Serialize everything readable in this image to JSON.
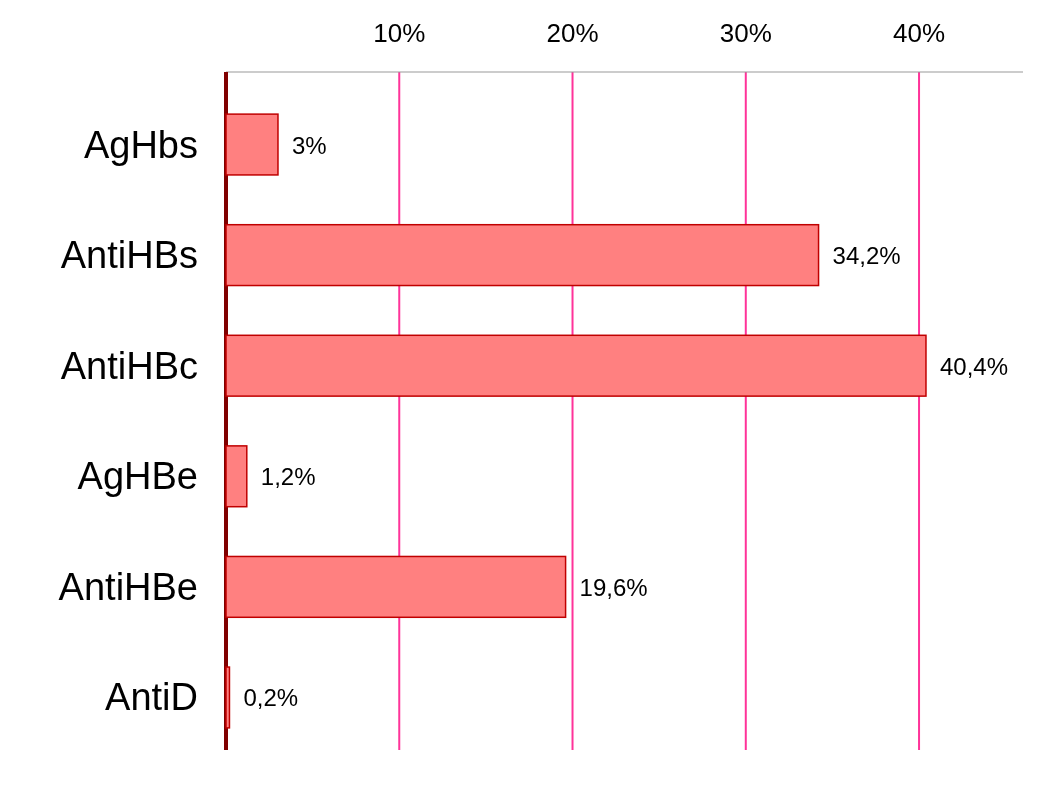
{
  "chart_data": {
    "type": "bar",
    "orientation": "horizontal",
    "categories": [
      "AgHbs",
      "AntiHBs",
      "AntiHBc",
      "AgHBe",
      "AntiHBe",
      "AntiD"
    ],
    "values": [
      3,
      34.2,
      40.4,
      1.2,
      19.6,
      0.2
    ],
    "value_labels": [
      "3%",
      "34,2%",
      "40,4%",
      "1,2%",
      "19,6%",
      "0,2%"
    ],
    "color": "#ff8080",
    "xlim": [
      0,
      46
    ],
    "xticks": [
      {
        "value": 10,
        "label": "10%"
      },
      {
        "value": 20,
        "label": "20%"
      },
      {
        "value": 30,
        "label": "30%"
      },
      {
        "value": 40,
        "label": "40%"
      }
    ],
    "grid": "x"
  }
}
